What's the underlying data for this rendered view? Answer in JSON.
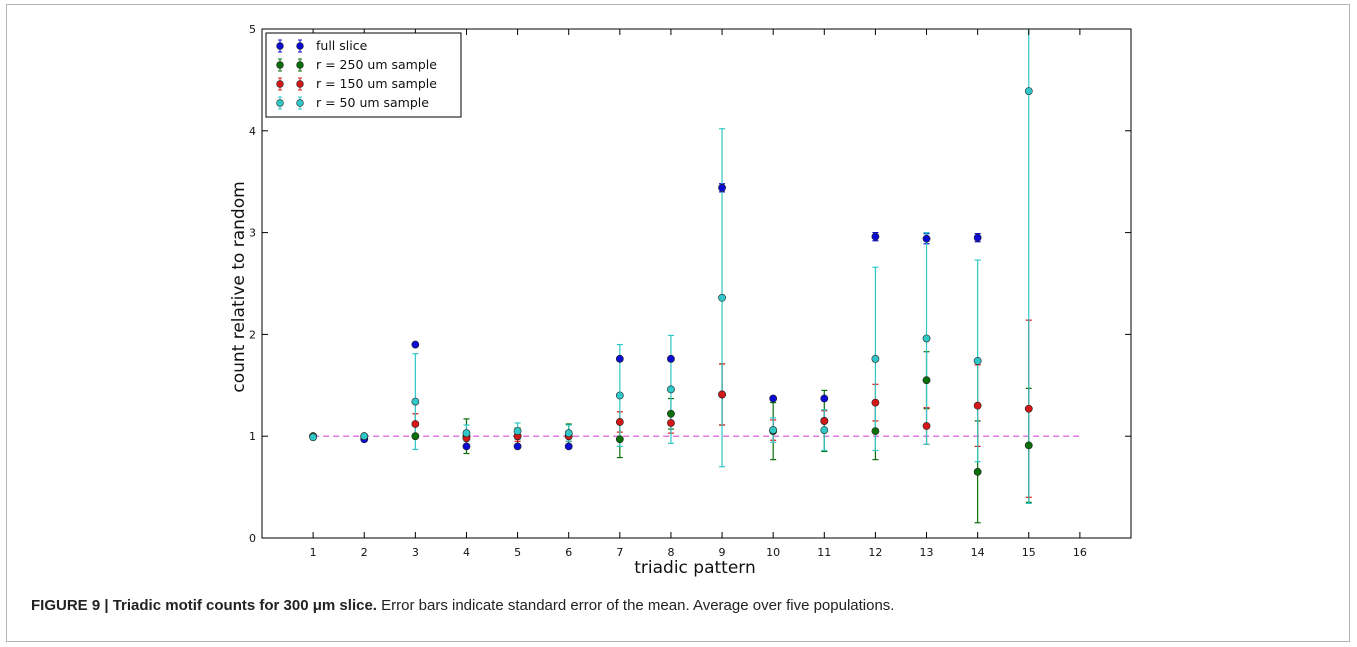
{
  "caption": {
    "label": "FIGURE 9 | Triadic motif counts for 300 μm slice.",
    "text": " Error bars indicate standard error of the mean. Average over five populations."
  },
  "chart_data": {
    "type": "scatter",
    "title": "",
    "xlabel": "triadic pattern",
    "ylabel": "count relative to random",
    "xlim": [
      0,
      17
    ],
    "ylim": [
      0,
      5
    ],
    "x_ticks": [
      "1",
      "2",
      "3",
      "4",
      "5",
      "6",
      "7",
      "8",
      "9",
      "10",
      "11",
      "12",
      "13",
      "14",
      "15",
      "16"
    ],
    "y_ticks": [
      "0",
      "1",
      "2",
      "3",
      "4",
      "5"
    ],
    "legend_position": "top-left",
    "grid": false,
    "reference_line": {
      "y": 1,
      "style": "dashed",
      "color": "#d64fd6"
    },
    "series": [
      {
        "name": "full slice",
        "color": "#0b0bd4",
        "x": [
          1,
          2,
          3,
          4,
          5,
          6,
          7,
          8,
          9,
          10,
          11,
          12,
          13,
          14
        ],
        "y": [
          1.0,
          0.97,
          1.9,
          0.9,
          0.9,
          0.9,
          1.76,
          1.76,
          3.44,
          1.37,
          1.37,
          2.96,
          2.94,
          2.95
        ],
        "err": [
          0.02,
          0.02,
          0.01,
          0.01,
          0.01,
          0.01,
          0.01,
          0.01,
          0.04,
          0.01,
          0.01,
          0.04,
          0.05,
          0.04
        ]
      },
      {
        "name": "r = 250 um sample",
        "color": "#0a6e0a",
        "x": [
          1,
          2,
          3,
          4,
          5,
          6,
          7,
          8,
          9,
          10,
          11,
          12,
          13,
          14,
          15
        ],
        "y": [
          1.0,
          1.0,
          1.0,
          1.0,
          1.0,
          1.0,
          0.97,
          1.22,
          1.41,
          1.05,
          1.15,
          1.05,
          1.55,
          0.65,
          0.91
        ],
        "err": [
          0.02,
          0.02,
          0.02,
          0.17,
          0.08,
          0.12,
          0.18,
          0.15,
          0.3,
          0.28,
          0.3,
          0.28,
          0.28,
          0.5,
          0.56
        ]
      },
      {
        "name": "r = 150 um sample",
        "color": "#d41818",
        "x": [
          3,
          4,
          5,
          6,
          7,
          8,
          9,
          10,
          11,
          12,
          13,
          14,
          15
        ],
        "y": [
          1.12,
          0.98,
          1.0,
          1.0,
          1.14,
          1.13,
          1.41,
          1.06,
          1.15,
          1.33,
          1.1,
          1.3,
          1.27
        ],
        "err": [
          0.1,
          0.06,
          0.05,
          0.05,
          0.1,
          0.1,
          0.3,
          0.1,
          0.1,
          0.18,
          0.18,
          0.4,
          0.87
        ]
      },
      {
        "name": "r = 50 um sample",
        "color": "#2fc7c7",
        "x": [
          1,
          2,
          3,
          4,
          5,
          6,
          7,
          8,
          9,
          10,
          11,
          12,
          13,
          14,
          15
        ],
        "y": [
          0.99,
          1.0,
          1.34,
          1.03,
          1.05,
          1.03,
          1.4,
          1.46,
          2.36,
          1.06,
          1.06,
          1.76,
          1.96,
          1.74,
          4.39
        ],
        "err": [
          0.02,
          0.02,
          0.47,
          0.08,
          0.08,
          0.08,
          0.5,
          0.53,
          1.66,
          0.12,
          0.2,
          0.9,
          1.04,
          0.99,
          4.05
        ]
      }
    ]
  }
}
